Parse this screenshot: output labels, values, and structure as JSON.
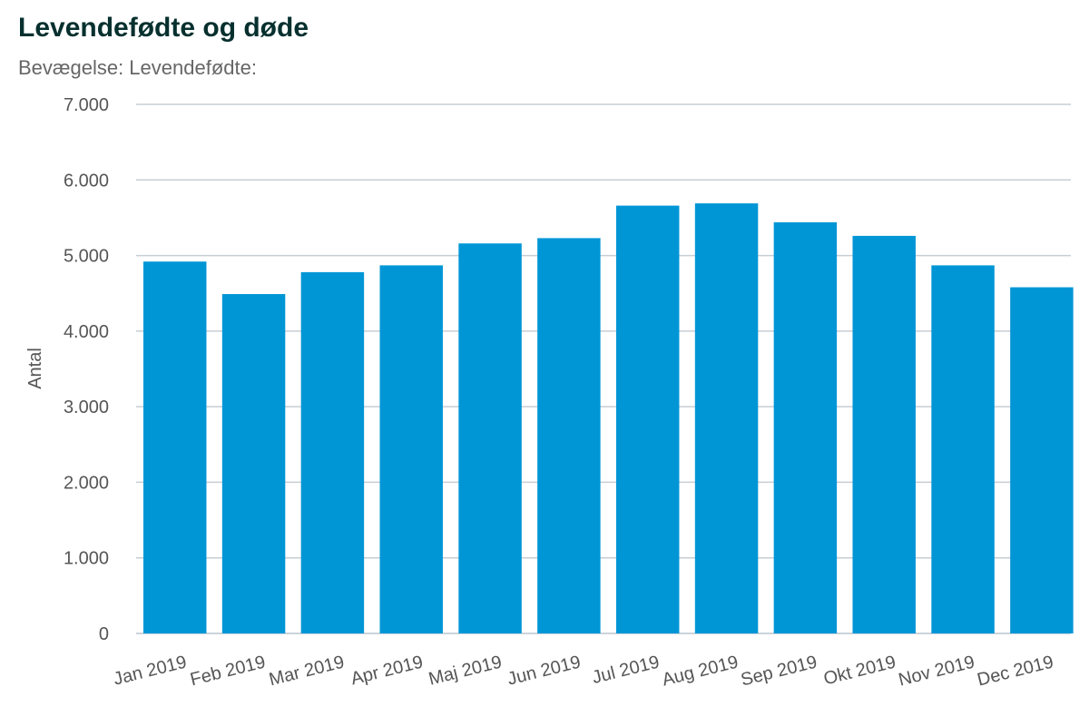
{
  "chart_data": {
    "type": "bar",
    "title": "Levendefødte og døde",
    "subtitle": "Bevægelse: Levendefødte:",
    "xlabel": "",
    "ylabel": "Antal",
    "categories": [
      "Jan 2019",
      "Feb 2019",
      "Mar 2019",
      "Apr 2019",
      "Maj 2019",
      "Jun 2019",
      "Jul 2019",
      "Aug 2019",
      "Sep 2019",
      "Okt 2019",
      "Nov 2019",
      "Dec 2019"
    ],
    "series": [
      {
        "values": [
          4920,
          4490,
          4780,
          4870,
          5160,
          5230,
          5660,
          5690,
          5440,
          5260,
          4870,
          4580
        ],
        "color": "#0096d6"
      }
    ],
    "ylim": [
      0,
      7000
    ],
    "yticks": [
      0,
      1000,
      2000,
      3000,
      4000,
      5000,
      6000,
      7000
    ],
    "ytick_labels": [
      "0",
      "1.000",
      "2.000",
      "3.000",
      "4.000",
      "5.000",
      "6.000",
      "7.000"
    ],
    "grid": true,
    "legend": "none"
  },
  "colors": {
    "bar": "#0096d6",
    "gridline": "#c5ced5",
    "title": "#06302e",
    "text": "#555555"
  }
}
